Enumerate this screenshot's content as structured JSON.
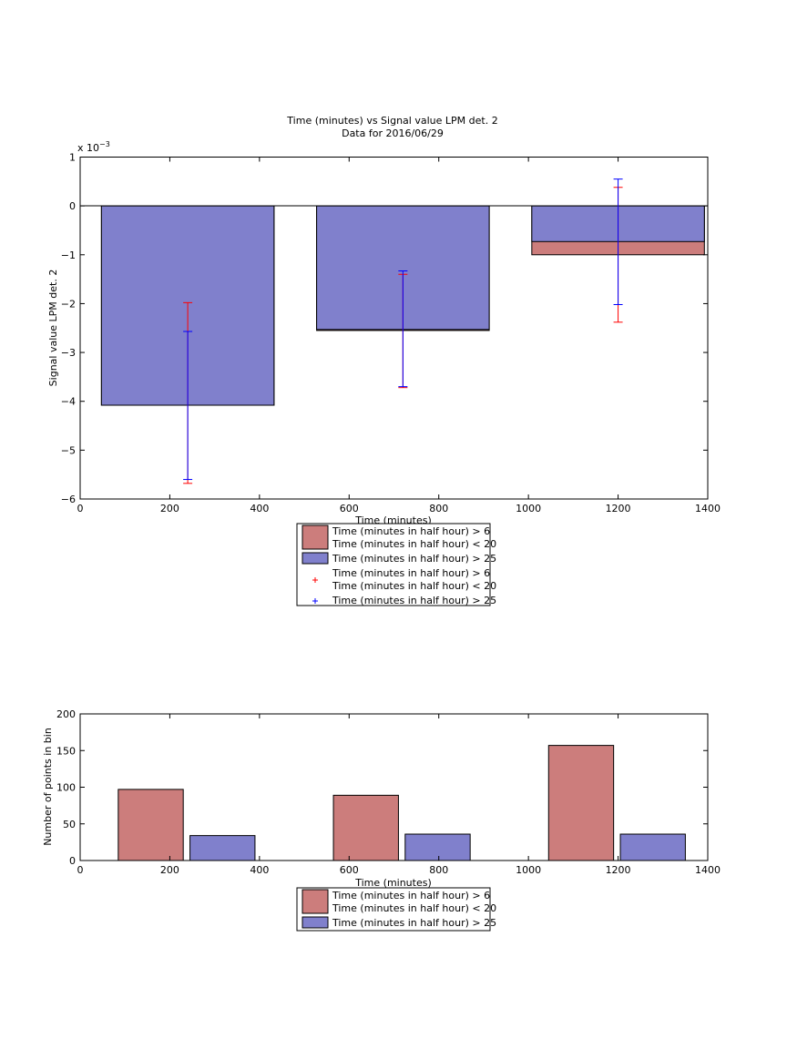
{
  "colors": {
    "red_fill": "#cc7d7c",
    "blue_fill": "#8080cc",
    "red_err": "#ff0000",
    "blue_err": "#0000ff"
  },
  "chart_data": [
    {
      "type": "bar",
      "title": "Time (minutes) vs Signal value LPM det. 2",
      "subtitle": "Data for 2016/06/29",
      "xlabel": "Time (minutes)",
      "ylabel": "Signal value LPM det. 2",
      "y_exponent_label": "x 10",
      "y_exponent_power": "−3",
      "xlim": [
        0,
        1400
      ],
      "ylim": [
        -6,
        1
      ],
      "xticks": [
        "0",
        "200",
        "400",
        "600",
        "800",
        "1000",
        "1200",
        "1400"
      ],
      "yticks": [
        "1",
        "0",
        "−1",
        "−2",
        "−3",
        "−4",
        "−5",
        "−6"
      ],
      "bar_width": 385,
      "grid": false,
      "legend_position": "below",
      "series": [
        {
          "name": "Time (minutes in half hour) > 6\nTime (minutes in half hour) < 20",
          "x": [
            240,
            720,
            1200
          ],
          "values": [
            -4.08,
            -2.55,
            -1.0
          ],
          "error_low": [
            -5.68,
            -3.72,
            -2.38
          ],
          "error_high": [
            -1.98,
            -1.4,
            0.38
          ]
        },
        {
          "name": "Time (minutes in half hour) > 25",
          "x": [
            240,
            720,
            1200
          ],
          "values": [
            -4.08,
            -2.53,
            -0.73
          ],
          "error_low": [
            -5.6,
            -3.7,
            -2.02
          ],
          "error_high": [
            -2.57,
            -1.33,
            0.55
          ]
        }
      ],
      "legend": [
        {
          "kind": "patch",
          "series": 0,
          "lines": [
            "Time (minutes in half hour) > 6",
            "Time (minutes in half hour) < 20"
          ]
        },
        {
          "kind": "patch",
          "series": 1,
          "lines": [
            "Time (minutes in half hour) > 25"
          ]
        },
        {
          "kind": "marker",
          "series": 0,
          "lines": [
            "Time (minutes in half hour) > 6",
            "Time (minutes in half hour) < 20"
          ]
        },
        {
          "kind": "marker",
          "series": 1,
          "lines": [
            "Time (minutes in half hour) > 25"
          ]
        }
      ]
    },
    {
      "type": "bar",
      "title": "",
      "xlabel": "Time (minutes)",
      "ylabel": "Number of points in bin",
      "xlim": [
        0,
        1400
      ],
      "ylim": [
        0,
        200
      ],
      "xticks": [
        "0",
        "200",
        "400",
        "600",
        "800",
        "1000",
        "1200",
        "1400"
      ],
      "yticks": [
        "200",
        "150",
        "100",
        "50",
        "0"
      ],
      "grid": false,
      "legend_position": "below",
      "series": [
        {
          "name": "Time (minutes in half hour) > 6\nTime (minutes in half hour) < 20",
          "x_start": [
            85,
            565,
            1045
          ],
          "x_end": [
            230,
            710,
            1190
          ],
          "values": [
            97,
            89,
            157
          ]
        },
        {
          "name": "Time (minutes in half hour) > 25",
          "x_start": [
            245,
            725,
            1205
          ],
          "x_end": [
            390,
            870,
            1350
          ],
          "values": [
            34,
            36,
            36
          ]
        }
      ],
      "legend": [
        {
          "kind": "patch",
          "series": 0,
          "lines": [
            "Time (minutes in half hour) > 6",
            "Time (minutes in half hour) < 20"
          ]
        },
        {
          "kind": "patch",
          "series": 1,
          "lines": [
            "Time (minutes in half hour) > 25"
          ]
        }
      ]
    }
  ]
}
